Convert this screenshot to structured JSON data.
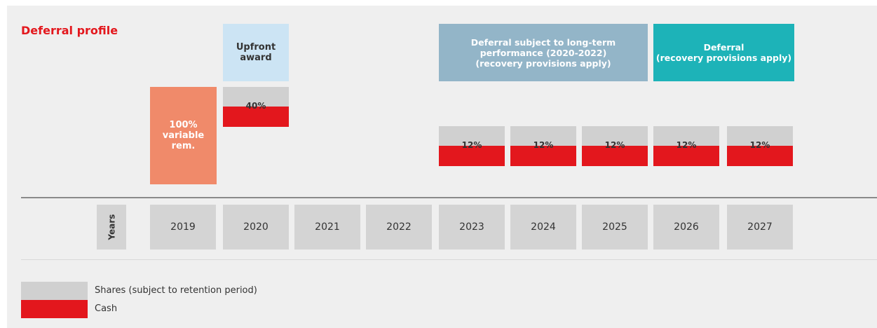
{
  "title": "Deferral profile",
  "headers": {
    "upfront": [
      "Upfront",
      "award"
    ],
    "long_term": [
      "Deferral subject to long-term",
      "performance (2020-2022)",
      "(recovery provisions apply)"
    ],
    "deferral": [
      "Deferral",
      "(recovery provisions apply)"
    ]
  },
  "variable_rem": [
    "100%",
    "variable",
    "rem."
  ],
  "upfront_bar": "40%",
  "deferred_bars": [
    "12%",
    "12%",
    "12%",
    "12%",
    "12%"
  ],
  "axis_label": "Years",
  "years": [
    "2019",
    "2020",
    "2021",
    "2022",
    "2023",
    "2024",
    "2025",
    "2026",
    "2027"
  ],
  "legend": [
    "Shares (subject to retention period)",
    "Cash"
  ]
}
